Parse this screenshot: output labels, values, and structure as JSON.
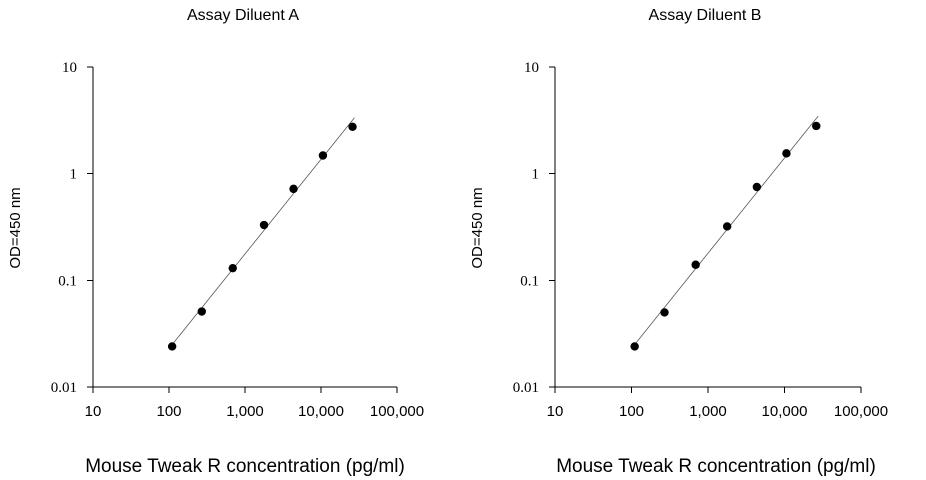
{
  "chart_data": [
    {
      "type": "scatter",
      "title": "Assay Diluent A",
      "xlabel": "Mouse Tweak R concentration (pg/ml)",
      "ylabel": "OD=450 nm",
      "x_scale": "log",
      "y_scale": "log",
      "xlim": [
        10,
        100000
      ],
      "ylim": [
        0.01,
        10
      ],
      "x_ticks": [
        "10",
        "100",
        "1,000",
        "10,000",
        "100,000"
      ],
      "y_ticks": [
        "0.01",
        "0.1",
        "1",
        "10"
      ],
      "grid": false,
      "fit_line": true,
      "series": [
        {
          "x": [
            110,
            270,
            690,
            1780,
            4350,
            10600,
            26000
          ],
          "y": [
            0.024,
            0.051,
            0.13,
            0.33,
            0.72,
            1.48,
            2.75
          ]
        }
      ]
    },
    {
      "type": "scatter",
      "title": "Assay Diluent B",
      "xlabel": "Mouse Tweak R concentration (pg/ml)",
      "ylabel": "OD=450 nm",
      "x_scale": "log",
      "y_scale": "log",
      "xlim": [
        10,
        100000
      ],
      "ylim": [
        0.01,
        10
      ],
      "x_ticks": [
        "10",
        "100",
        "1,000",
        "10,000",
        "100,000"
      ],
      "y_ticks": [
        "0.01",
        "0.1",
        "1",
        "10"
      ],
      "grid": false,
      "fit_line": true,
      "series": [
        {
          "x": [
            110,
            270,
            690,
            1780,
            4350,
            10600,
            26000
          ],
          "y": [
            0.024,
            0.05,
            0.14,
            0.32,
            0.75,
            1.55,
            2.8
          ]
        }
      ]
    }
  ]
}
